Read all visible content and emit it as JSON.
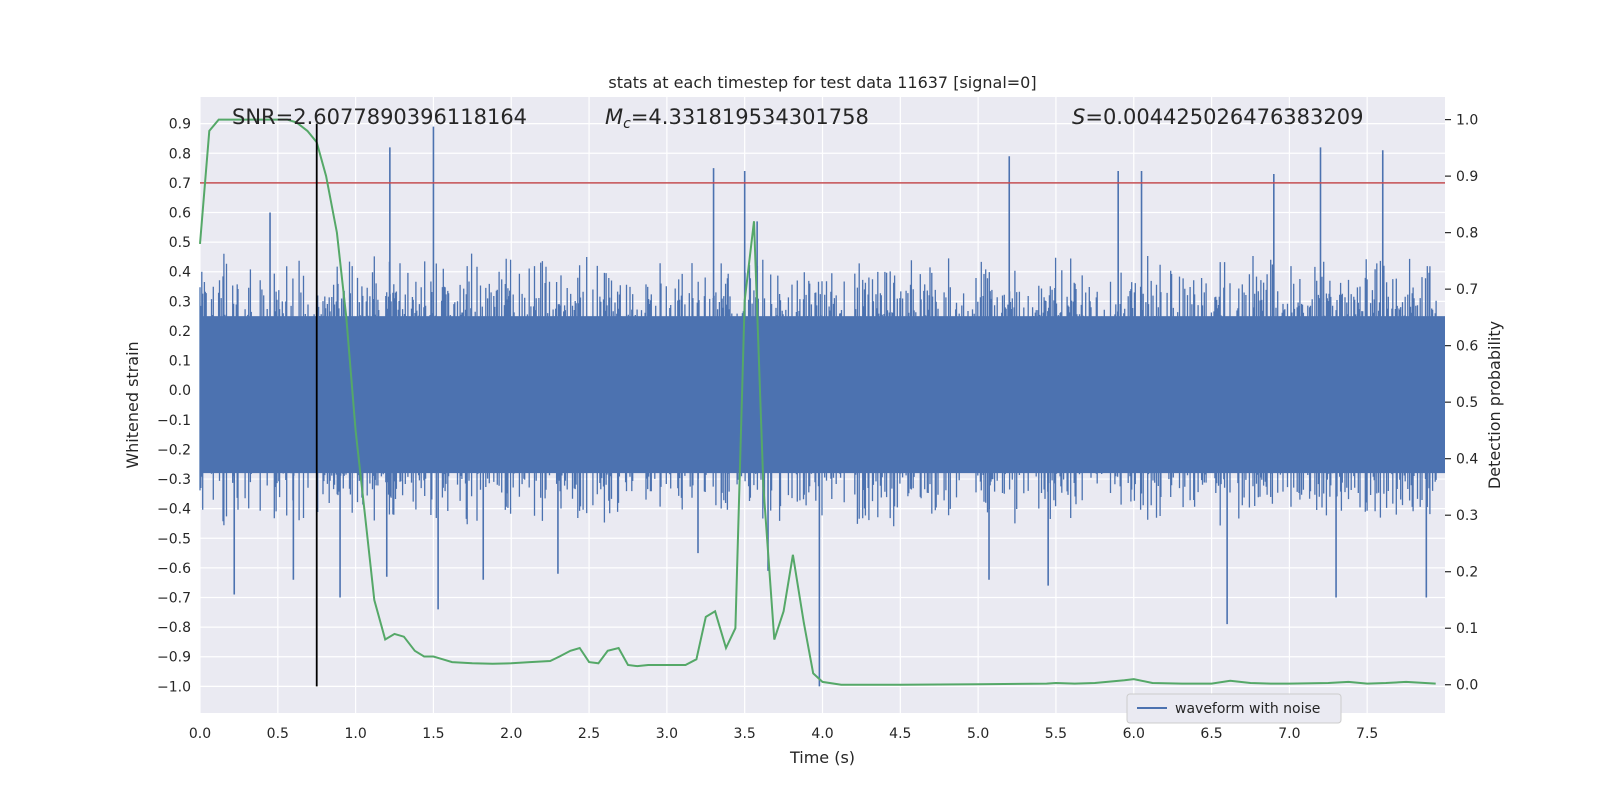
{
  "chart_data": {
    "type": "line",
    "title": "stats at each timestep for test data 11637 [signal=0]",
    "xlabel": "Time (s)",
    "ylabel_left": "Whitened strain",
    "ylabel_right": "Detection probability",
    "xlim": [
      0,
      8.0
    ],
    "ylim_left": [
      -1.09,
      0.99
    ],
    "ylim_right": [
      -0.05,
      1.04
    ],
    "x_ticks": [
      0.0,
      0.5,
      1.0,
      1.5,
      2.0,
      2.5,
      3.0,
      3.5,
      4.0,
      4.5,
      5.0,
      5.5,
      6.0,
      6.5,
      7.0,
      7.5
    ],
    "y_left_ticks": [
      0.9,
      0.8,
      0.7,
      0.6,
      0.5,
      0.4,
      0.3,
      0.2,
      0.1,
      0.0,
      -0.1,
      -0.2,
      -0.3,
      -0.4,
      -0.5,
      -0.6,
      -0.7,
      -0.8,
      -0.9,
      -1.0
    ],
    "y_right_ticks": [
      1.0,
      0.9,
      0.8,
      0.7,
      0.6,
      0.5,
      0.4,
      0.3,
      0.2,
      0.1,
      0.0
    ],
    "grid": true,
    "legend_position": "lower-right",
    "colors": {
      "background": "#eaeaf2",
      "grid": "#ffffff",
      "waveform": "#4c72b0",
      "probability": "#55a868",
      "threshold": "#c44e52",
      "marker": "#000000"
    },
    "annotations": [
      {
        "label": "SNR=2.6077890396118164"
      },
      {
        "label": "M_c=4.331819534301758"
      },
      {
        "label": "S=0.004425026476383209"
      }
    ],
    "threshold_line": {
      "axis": "left",
      "y": 0.7
    },
    "marker_line": {
      "x": 0.75,
      "y_range": [
        -1.0,
        0.9
      ]
    },
    "series": [
      {
        "name": "waveform with noise",
        "axis": "left",
        "kind": "noise-waveform",
        "envelope_typical": [
          -0.45,
          0.45
        ],
        "spikes": [
          {
            "x": 0.22,
            "y": -0.69
          },
          {
            "x": 0.6,
            "y": -0.64
          },
          {
            "x": 0.45,
            "y": 0.6
          },
          {
            "x": 0.9,
            "y": -0.7
          },
          {
            "x": 1.22,
            "y": 0.82
          },
          {
            "x": 1.5,
            "y": 0.89
          },
          {
            "x": 1.53,
            "y": -0.74
          },
          {
            "x": 1.2,
            "y": -0.63
          },
          {
            "x": 1.82,
            "y": -0.64
          },
          {
            "x": 2.3,
            "y": -0.62
          },
          {
            "x": 3.3,
            "y": 0.75
          },
          {
            "x": 3.5,
            "y": 0.74
          },
          {
            "x": 3.58,
            "y": 0.57
          },
          {
            "x": 3.65,
            "y": -0.61
          },
          {
            "x": 3.98,
            "y": -1.0
          },
          {
            "x": 5.2,
            "y": 0.79
          },
          {
            "x": 5.07,
            "y": -0.64
          },
          {
            "x": 5.45,
            "y": -0.66
          },
          {
            "x": 5.9,
            "y": 0.74
          },
          {
            "x": 6.05,
            "y": 0.74
          },
          {
            "x": 6.6,
            "y": -0.79
          },
          {
            "x": 7.2,
            "y": 0.82
          },
          {
            "x": 7.3,
            "y": -0.7
          },
          {
            "x": 7.6,
            "y": 0.81
          },
          {
            "x": 7.88,
            "y": -0.7
          },
          {
            "x": 6.9,
            "y": 0.73
          },
          {
            "x": 3.2,
            "y": -0.55
          }
        ]
      },
      {
        "name": "",
        "axis": "right",
        "kind": "line",
        "x": [
          0.0,
          0.06,
          0.12,
          0.19,
          0.25,
          0.31,
          0.38,
          0.44,
          0.5,
          0.56,
          0.62,
          0.69,
          0.75,
          0.81,
          0.88,
          0.94,
          1.0,
          1.06,
          1.12,
          1.19,
          1.25,
          1.31,
          1.38,
          1.44,
          1.5,
          1.56,
          1.62,
          1.75,
          1.88,
          2.0,
          2.12,
          2.25,
          2.31,
          2.38,
          2.44,
          2.5,
          2.56,
          2.62,
          2.69,
          2.75,
          2.81,
          2.88,
          3.0,
          3.12,
          3.19,
          3.25,
          3.31,
          3.38,
          3.44,
          3.5,
          3.56,
          3.62,
          3.69,
          3.75,
          3.81,
          3.88,
          3.94,
          4.0,
          4.12,
          4.25,
          4.5,
          5.0,
          5.44,
          5.5,
          5.62,
          5.75,
          5.94,
          6.0,
          6.12,
          6.31,
          6.5,
          6.62,
          6.75,
          6.88,
          7.0,
          7.25,
          7.38,
          7.5,
          7.62,
          7.75,
          7.94
        ],
        "y": [
          0.78,
          0.98,
          1.0,
          1.0,
          1.0,
          1.0,
          1.0,
          1.0,
          1.0,
          1.0,
          0.995,
          0.98,
          0.96,
          0.9,
          0.8,
          0.65,
          0.45,
          0.3,
          0.15,
          0.08,
          0.09,
          0.085,
          0.06,
          0.05,
          0.05,
          0.045,
          0.04,
          0.038,
          0.037,
          0.038,
          0.04,
          0.042,
          0.05,
          0.06,
          0.065,
          0.04,
          0.038,
          0.06,
          0.065,
          0.035,
          0.033,
          0.035,
          0.035,
          0.035,
          0.045,
          0.12,
          0.13,
          0.065,
          0.1,
          0.68,
          0.82,
          0.35,
          0.08,
          0.13,
          0.23,
          0.11,
          0.02,
          0.005,
          0.0,
          0.0,
          0.0,
          0.001,
          0.002,
          0.003,
          0.002,
          0.003,
          0.008,
          0.01,
          0.003,
          0.002,
          0.002,
          0.007,
          0.003,
          0.002,
          0.002,
          0.003,
          0.005,
          0.002,
          0.003,
          0.005,
          0.002
        ]
      }
    ]
  }
}
